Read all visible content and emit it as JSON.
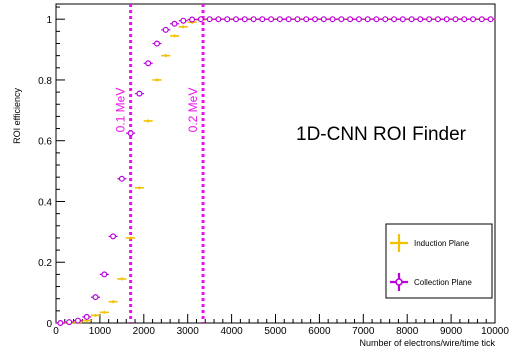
{
  "chart_data": {
    "type": "scatter",
    "title": "",
    "annotation": "1D-CNN ROI Finder",
    "xlabel": "Number of electrons/wire/time tick",
    "ylabel": "ROI efficiency",
    "xlim": [
      0,
      10000
    ],
    "ylim": [
      0,
      1.05
    ],
    "x_ticks": [
      "0",
      "1000",
      "2000",
      "3000",
      "4000",
      "5000",
      "6000",
      "7000",
      "8000",
      "9000",
      "10000"
    ],
    "y_ticks": [
      "0",
      "0.2",
      "0.4",
      "0.6",
      "0.8",
      "1"
    ],
    "grid": false,
    "legend_position": "bottom-right",
    "series": [
      {
        "name": "Induction Plane",
        "color": "#f2c200",
        "marker": "cross",
        "x": [
          100,
          300,
          500,
          700,
          900,
          1100,
          1300,
          1500,
          1700,
          1900,
          2100,
          2300,
          2500,
          2700,
          2900,
          3100,
          3300,
          3500,
          3700,
          3900,
          4100,
          4300,
          4500,
          4700,
          4900,
          5100,
          5300,
          5500,
          5700,
          5900,
          6100,
          6300,
          6500,
          6700,
          6900,
          7100,
          7300,
          7500,
          7700,
          7900,
          8100,
          8300,
          8500,
          8700,
          8900,
          9100,
          9300,
          9500,
          9700,
          9900
        ],
        "y": [
          0.0,
          0.0,
          0.002,
          0.008,
          0.025,
          0.035,
          0.07,
          0.145,
          0.28,
          0.445,
          0.665,
          0.8,
          0.88,
          0.945,
          0.975,
          0.99,
          0.998,
          1,
          1,
          1,
          1,
          1,
          1,
          1,
          1,
          1,
          1,
          1,
          1,
          1,
          1,
          1,
          1,
          1,
          1,
          1,
          1,
          1,
          1,
          1,
          1,
          1,
          1,
          1,
          1,
          1,
          1,
          1,
          1,
          1
        ]
      },
      {
        "name": "Collection Plane",
        "color": "#bb00dd",
        "marker": "circle",
        "x": [
          100,
          300,
          500,
          700,
          900,
          1100,
          1300,
          1500,
          1700,
          1900,
          2100,
          2300,
          2500,
          2700,
          2900,
          3100,
          3300,
          3500,
          3700,
          3900,
          4100,
          4300,
          4500,
          4700,
          4900,
          5100,
          5300,
          5500,
          5700,
          5900,
          6100,
          6300,
          6500,
          6700,
          6900,
          7100,
          7300,
          7500,
          7700,
          7900,
          8100,
          8300,
          8500,
          8700,
          8900,
          9100,
          9300,
          9500,
          9700,
          9900
        ],
        "y": [
          0.0,
          0.003,
          0.008,
          0.02,
          0.085,
          0.16,
          0.285,
          0.475,
          0.625,
          0.755,
          0.855,
          0.92,
          0.965,
          0.985,
          0.995,
          0.999,
          1,
          1,
          1,
          1,
          1,
          1,
          1,
          1,
          1,
          1,
          1,
          1,
          1,
          1,
          1,
          1,
          1,
          1,
          1,
          1,
          1,
          1,
          1,
          1,
          1,
          1,
          1,
          1,
          1,
          1,
          1,
          1,
          1,
          1
        ]
      }
    ],
    "vlines": [
      {
        "x": 1700,
        "label": "0.1 MeV",
        "color": "#ee11ee"
      },
      {
        "x": 3350,
        "label": "0.2 MeV",
        "color": "#ee11ee"
      }
    ]
  }
}
